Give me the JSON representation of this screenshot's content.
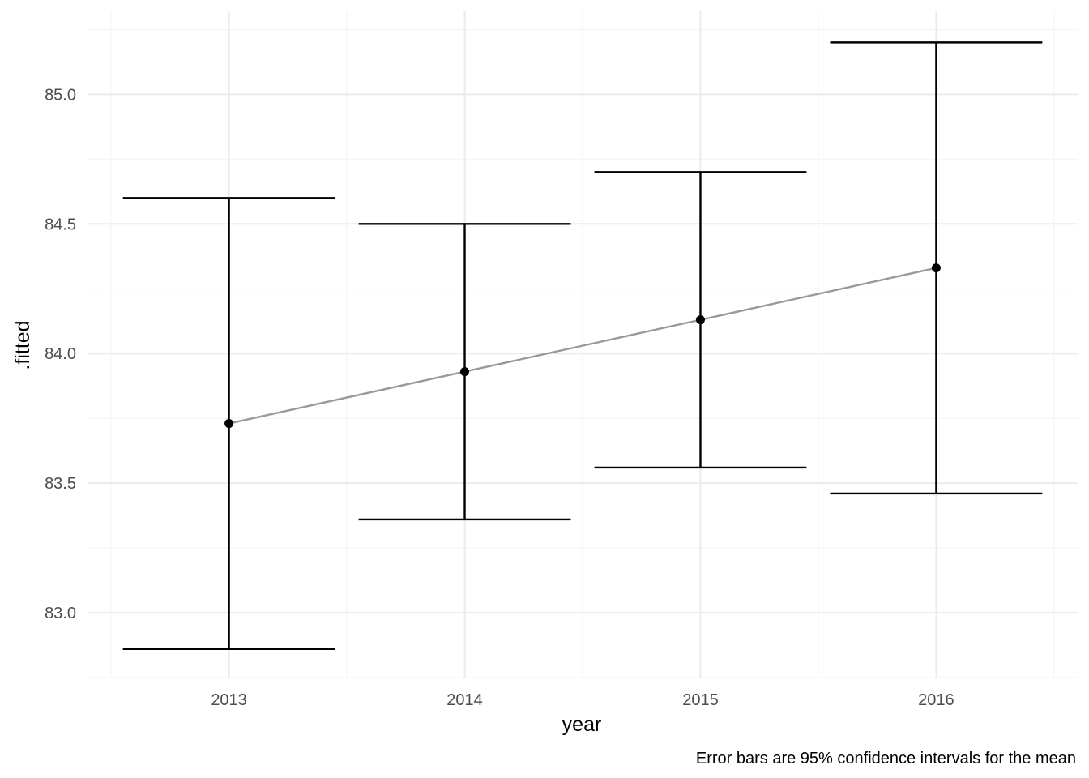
{
  "chart_data": {
    "type": "scatter",
    "categories": [
      "2013",
      "2014",
      "2015",
      "2016"
    ],
    "series": [
      {
        "values": [
          83.73,
          83.93,
          84.13,
          84.33
        ],
        "lower": [
          82.86,
          83.36,
          83.56,
          83.46
        ],
        "upper": [
          84.6,
          84.5,
          84.7,
          85.2
        ]
      }
    ],
    "trend_line": true,
    "xlabel": "year",
    "ylabel": ".fitted",
    "yticks": [
      "83.0",
      "83.5",
      "84.0",
      "84.5",
      "85.0"
    ],
    "ylim": [
      82.75,
      85.32
    ],
    "grid": true,
    "caption": "Error bars are 95% confidence intervals for the mean",
    "colors": {
      "points": "#000000",
      "error_bars": "#000000",
      "trend_line": "#999999",
      "grid": "#ebebeb"
    }
  }
}
